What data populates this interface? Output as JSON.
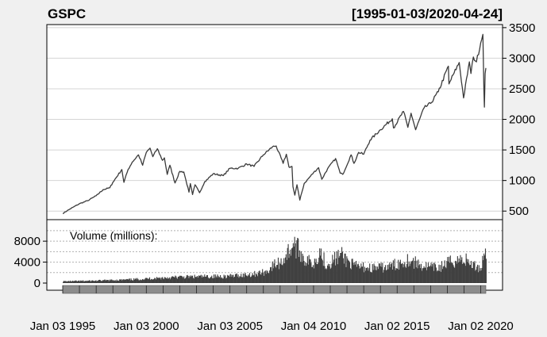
{
  "chart_data": [
    {
      "type": "line",
      "title": "GSPC",
      "subtitle": "[1995-01-03/2020-04-24]",
      "x_range": [
        "1995-01-03",
        "2020-04-24"
      ],
      "ylim": [
        360,
        3550
      ],
      "yticks": [
        500,
        1000,
        1500,
        2000,
        2500,
        3000,
        3500
      ],
      "grid": true,
      "x": [
        "1995-01-03",
        "1995-06-01",
        "1996-01-02",
        "1996-07-01",
        "1997-01-02",
        "1997-06-02",
        "1997-10-27",
        "1998-01-02",
        "1998-07-17",
        "1998-09-01",
        "1998-12-01",
        "1999-03-01",
        "1999-07-16",
        "1999-10-15",
        "2000-01-03",
        "2000-03-24",
        "2000-05-24",
        "2000-09-01",
        "2000-12-20",
        "2001-02-01",
        "2001-04-04",
        "2001-06-01",
        "2001-09-21",
        "2002-01-04",
        "2002-04-01",
        "2002-07-23",
        "2002-08-22",
        "2002-10-09",
        "2002-12-02",
        "2003-03-11",
        "2003-07-01",
        "2004-01-02",
        "2004-08-12",
        "2005-01-03",
        "2005-07-01",
        "2006-01-03",
        "2006-06-13",
        "2007-01-03",
        "2007-07-19",
        "2007-10-09",
        "2008-03-10",
        "2008-05-19",
        "2008-07-15",
        "2008-09-19",
        "2008-10-10",
        "2008-11-20",
        "2009-01-06",
        "2009-03-09",
        "2009-06-12",
        "2010-01-04",
        "2010-04-23",
        "2010-07-02",
        "2010-11-04",
        "2011-04-29",
        "2011-08-08",
        "2011-10-03",
        "2012-04-02",
        "2012-06-04",
        "2012-09-14",
        "2013-01-02",
        "2013-05-21",
        "2014-01-02",
        "2014-09-19",
        "2014-10-15",
        "2015-05-21",
        "2015-08-25",
        "2015-11-03",
        "2016-02-11",
        "2016-08-15",
        "2017-01-03",
        "2017-06-19",
        "2018-01-26",
        "2018-02-08",
        "2018-06-01",
        "2018-09-20",
        "2018-12-24",
        "2019-04-30",
        "2019-06-03",
        "2019-07-26",
        "2019-10-01",
        "2020-01-02",
        "2020-02-19",
        "2020-03-12",
        "2020-03-23",
        "2020-04-08",
        "2020-04-24"
      ],
      "y": [
        460,
        530,
        620,
        670,
        750,
        850,
        880,
        970,
        1180,
        970,
        1180,
        1300,
        1420,
        1250,
        1460,
        1530,
        1390,
        1520,
        1330,
        1370,
        1100,
        1250,
        960,
        1150,
        1140,
        810,
        950,
        770,
        930,
        800,
        980,
        1110,
        1080,
        1200,
        1200,
        1270,
        1230,
        1420,
        1550,
        1565,
        1280,
        1430,
        1220,
        1230,
        900,
        760,
        930,
        680,
        950,
        1130,
        1210,
        1020,
        1190,
        1360,
        1120,
        1100,
        1420,
        1280,
        1460,
        1430,
        1660,
        1830,
        2010,
        1860,
        2130,
        1870,
        2100,
        1830,
        2190,
        2260,
        2450,
        2870,
        2580,
        2760,
        2930,
        2350,
        2940,
        2750,
        3020,
        2940,
        3250,
        3390,
        2480,
        2200,
        2750,
        2840
      ]
    },
    {
      "type": "bar",
      "title": "Volume (millions):",
      "x_range": [
        "1995-01-03",
        "2020-04-24"
      ],
      "ylim": [
        0,
        11200
      ],
      "yticks": [
        0,
        4000,
        8000
      ],
      "grid": true,
      "x": [
        "1995-01-03",
        "1997-01-02",
        "1999-01-04",
        "2000-06-01",
        "2002-01-02",
        "2003-06-02",
        "2005-01-03",
        "2006-06-01",
        "2007-03-01",
        "2007-08-16",
        "2008-01-22",
        "2008-10-10",
        "2009-03-10",
        "2009-07-01",
        "2010-01-04",
        "2010-05-06",
        "2010-10-01",
        "2011-08-08",
        "2012-06-01",
        "2013-06-03",
        "2014-06-02",
        "2015-08-24",
        "2016-06-24",
        "2017-06-01",
        "2018-02-06",
        "2018-12-21",
        "2019-08-05",
        "2020-01-02",
        "2020-02-28",
        "2020-03-13",
        "2020-04-24"
      ],
      "y": [
        400,
        550,
        800,
        1100,
        1400,
        1500,
        1600,
        2100,
        2600,
        4200,
        4800,
        9000,
        7200,
        5200,
        4600,
        7500,
        4200,
        6500,
        3900,
        3500,
        3600,
        5400,
        4000,
        3400,
        4800,
        5600,
        4000,
        3400,
        6800,
        9200,
        4700
      ]
    }
  ],
  "x_axis": {
    "ticks": [
      "Jan 03 1995",
      "Jan 03 2000",
      "Jan 03 2005",
      "Jan 04 2010",
      "Jan 02 2015",
      "Jan 02 2020"
    ],
    "tick_dates": [
      "1995-01-03",
      "2000-01-03",
      "2005-01-03",
      "2010-01-04",
      "2015-01-02",
      "2020-01-02"
    ]
  },
  "colors": {
    "background": "#f0f0f0",
    "plot_background": "#ffffff",
    "line": "#3a3a3a",
    "volume": "#404040",
    "grid": "#d4d4d4",
    "axis_strip": "#8c8c8c"
  }
}
